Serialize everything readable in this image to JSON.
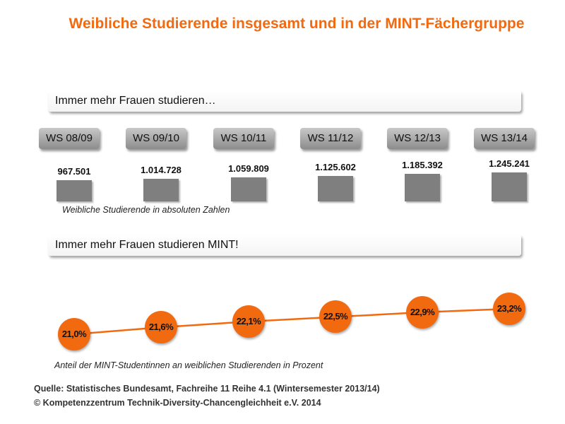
{
  "title": "Weibliche Studierende insgesamt und in der MINT-Fächergruppe",
  "banner1": "Immer mehr Frauen studieren…",
  "banner2": "Immer mehr Frauen studieren MINT!",
  "chart_data": [
    {
      "type": "bar",
      "categories": [
        "WS 08/09",
        "WS 09/10",
        "WS 10/11",
        "WS 11/12",
        "WS 12/13",
        "WS 13/14"
      ],
      "values": [
        967501,
        1014728,
        1059809,
        1125602,
        1185392,
        1245241
      ],
      "labels": [
        "967.501",
        "1.014.728",
        "1.059.809",
        "1.125.602",
        "1.185.392",
        "1.245.241"
      ],
      "caption": "Weibliche Studierende in absoluten Zahlen",
      "color": "#7f7f7f"
    },
    {
      "type": "line",
      "categories": [
        "WS 08/09",
        "WS 09/10",
        "WS 10/11",
        "WS 11/12",
        "WS 12/13",
        "WS 13/14"
      ],
      "values": [
        21.0,
        21.6,
        22.1,
        22.5,
        22.9,
        23.2
      ],
      "labels": [
        "21,0%",
        "21,6%",
        "22,1%",
        "22,5%",
        "22,9%",
        "23,2%"
      ],
      "caption": "Anteil der MINT-Studentinnen an weiblichen Studierenden in Prozent",
      "color": "#f26a10"
    }
  ],
  "source": "Quelle:  Statistisches Bundesamt, Fachreihe 11 Reihe 4.1 (Wintersemester 2013/14)",
  "copyright": "© Kompetenzzentrum Technik-Diversity-Chancengleichheit e.V. 2014"
}
